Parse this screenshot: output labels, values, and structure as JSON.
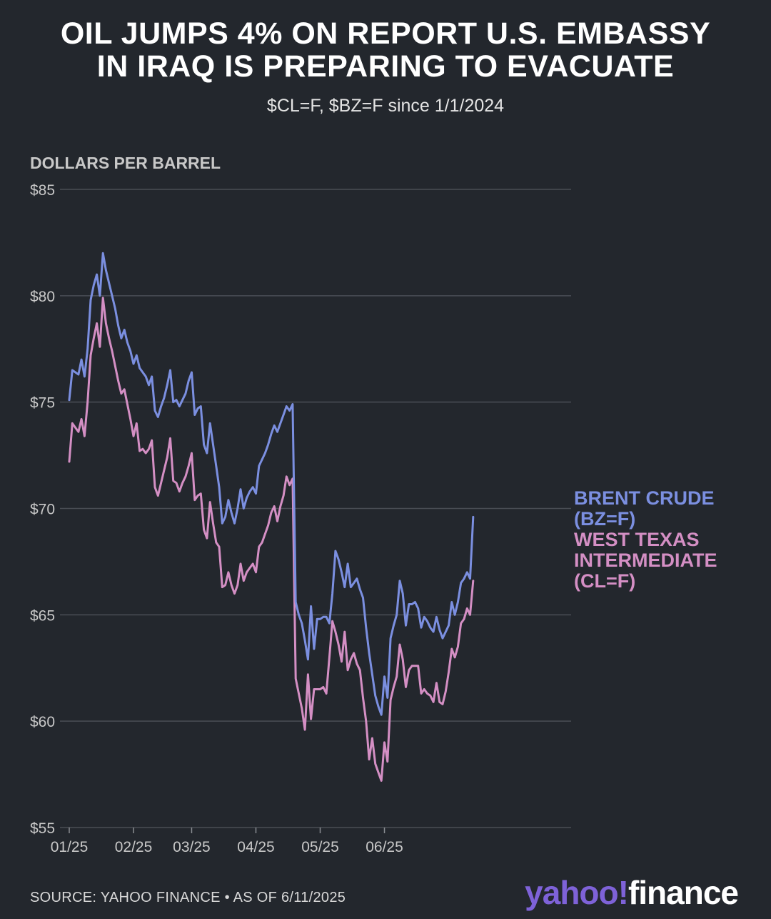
{
  "header": {
    "title_line1": "OIL JUMPS 4% ON REPORT U.S. EMBASSY",
    "title_line2": "IN IRAQ IS PREPARING TO EVACUATE",
    "subtitle": "$CL=F, $BZ=F since 1/1/2024"
  },
  "footer": {
    "source": "SOURCE: YAHOO FINANCE • AS OF 6/11/2025",
    "logo_part1": "yahoo!",
    "logo_part2": "finance"
  },
  "chart_data": {
    "type": "line",
    "ylabel": "DOLLARS PER BARREL",
    "ylim": [
      55,
      85
    ],
    "yticks": [
      55,
      60,
      65,
      70,
      75,
      80,
      85
    ],
    "ytick_labels": [
      "$55",
      "$60",
      "$65",
      "$70",
      "$75",
      "$80",
      "$85"
    ],
    "xlim": [
      0,
      164
    ],
    "xticks": [
      0,
      21,
      40,
      61,
      82,
      103
    ],
    "xtick_labels": [
      "01/25",
      "02/25",
      "03/25",
      "04/25",
      "05/25",
      "06/25"
    ],
    "grid": true,
    "colors": {
      "brent": "#7b8fe0",
      "wti": "#d48fc4",
      "grid": "#4a4e55",
      "text": "#c8c8c8"
    },
    "series": [
      {
        "name": "BRENT CRUDE (BZ=F)",
        "label_lines": [
          "BRENT CRUDE",
          "(BZ=F)"
        ],
        "color": "#7b8fe0",
        "points": [
          [
            0,
            75.1
          ],
          [
            1,
            76.5
          ],
          [
            2,
            76.4
          ],
          [
            3,
            76.3
          ],
          [
            4,
            77.0
          ],
          [
            5,
            76.2
          ],
          [
            6,
            77.5
          ],
          [
            7,
            79.8
          ],
          [
            8,
            80.5
          ],
          [
            9,
            81.0
          ],
          [
            10,
            80.0
          ],
          [
            11,
            82.0
          ],
          [
            12,
            81.2
          ],
          [
            13,
            80.6
          ],
          [
            14,
            80.0
          ],
          [
            15,
            79.4
          ],
          [
            16,
            78.6
          ],
          [
            17,
            78.0
          ],
          [
            18,
            78.4
          ],
          [
            19,
            77.8
          ],
          [
            20,
            77.4
          ],
          [
            21,
            76.8
          ],
          [
            22,
            77.2
          ],
          [
            23,
            76.6
          ],
          [
            24,
            76.4
          ],
          [
            25,
            76.2
          ],
          [
            26,
            75.8
          ],
          [
            27,
            76.2
          ],
          [
            28,
            74.6
          ],
          [
            29,
            74.3
          ],
          [
            30,
            74.8
          ],
          [
            31,
            75.2
          ],
          [
            32,
            75.8
          ],
          [
            33,
            76.5
          ],
          [
            34,
            75.0
          ],
          [
            35,
            75.1
          ],
          [
            36,
            74.8
          ],
          [
            37,
            75.1
          ],
          [
            38,
            75.4
          ],
          [
            39,
            76.0
          ],
          [
            40,
            76.4
          ],
          [
            41,
            74.4
          ],
          [
            42,
            74.7
          ],
          [
            43,
            74.8
          ],
          [
            44,
            73.0
          ],
          [
            45,
            72.6
          ],
          [
            46,
            74.0
          ],
          [
            47,
            73.0
          ],
          [
            48,
            72.0
          ],
          [
            49,
            71.0
          ],
          [
            50,
            69.3
          ],
          [
            51,
            69.6
          ],
          [
            52,
            70.4
          ],
          [
            53,
            69.8
          ],
          [
            54,
            69.3
          ],
          [
            55,
            70.0
          ],
          [
            56,
            70.9
          ],
          [
            57,
            70.0
          ],
          [
            58,
            70.5
          ],
          [
            59,
            70.8
          ],
          [
            60,
            71.0
          ],
          [
            61,
            70.7
          ],
          [
            62,
            72.0
          ],
          [
            63,
            72.3
          ],
          [
            64,
            72.6
          ],
          [
            65,
            73.0
          ],
          [
            66,
            73.5
          ],
          [
            67,
            73.9
          ],
          [
            68,
            73.6
          ],
          [
            69,
            74.0
          ],
          [
            70,
            74.4
          ],
          [
            71,
            74.8
          ],
          [
            72,
            74.6
          ],
          [
            73,
            74.9
          ],
          [
            74,
            65.6
          ],
          [
            75,
            65.0
          ],
          [
            76,
            64.6
          ],
          [
            77,
            63.8
          ],
          [
            78,
            62.9
          ],
          [
            79,
            65.4
          ],
          [
            80,
            63.4
          ],
          [
            81,
            64.8
          ],
          [
            82,
            64.8
          ],
          [
            83,
            64.9
          ],
          [
            84,
            64.9
          ],
          [
            85,
            64.6
          ],
          [
            86,
            66.0
          ],
          [
            87,
            68.0
          ],
          [
            88,
            67.6
          ],
          [
            89,
            67.0
          ],
          [
            90,
            66.3
          ],
          [
            91,
            67.4
          ],
          [
            92,
            66.3
          ],
          [
            93,
            66.5
          ],
          [
            94,
            66.7
          ],
          [
            95,
            66.2
          ],
          [
            96,
            65.8
          ],
          [
            97,
            64.4
          ],
          [
            98,
            63.2
          ],
          [
            99,
            62.2
          ],
          [
            100,
            61.2
          ],
          [
            101,
            60.7
          ],
          [
            102,
            60.3
          ],
          [
            103,
            62.1
          ],
          [
            104,
            61.1
          ],
          [
            105,
            63.9
          ],
          [
            106,
            64.5
          ],
          [
            107,
            65.0
          ],
          [
            108,
            66.6
          ],
          [
            109,
            66.0
          ],
          [
            110,
            64.5
          ],
          [
            111,
            65.5
          ],
          [
            112,
            65.5
          ],
          [
            113,
            65.6
          ],
          [
            114,
            65.3
          ],
          [
            115,
            64.4
          ],
          [
            116,
            64.9
          ],
          [
            117,
            64.7
          ],
          [
            118,
            64.4
          ],
          [
            119,
            64.2
          ],
          [
            120,
            64.9
          ],
          [
            121,
            64.3
          ],
          [
            122,
            63.9
          ],
          [
            123,
            64.2
          ],
          [
            124,
            64.5
          ],
          [
            125,
            65.6
          ],
          [
            126,
            65.0
          ],
          [
            127,
            65.6
          ],
          [
            128,
            66.5
          ],
          [
            129,
            66.7
          ],
          [
            130,
            67.0
          ],
          [
            131,
            66.7
          ],
          [
            132,
            69.6
          ]
        ]
      },
      {
        "name": "WEST TEXAS INTERMEDIATE (CL=F)",
        "label_lines": [
          "WEST TEXAS",
          "INTERMEDIATE",
          "(CL=F)"
        ],
        "color": "#d48fc4",
        "points": [
          [
            0,
            72.2
          ],
          [
            1,
            74.0
          ],
          [
            2,
            73.8
          ],
          [
            3,
            73.6
          ],
          [
            4,
            74.2
          ],
          [
            5,
            73.4
          ],
          [
            6,
            75.0
          ],
          [
            7,
            77.2
          ],
          [
            8,
            78.0
          ],
          [
            9,
            78.7
          ],
          [
            10,
            77.6
          ],
          [
            11,
            79.9
          ],
          [
            12,
            78.7
          ],
          [
            13,
            78.0
          ],
          [
            14,
            77.4
          ],
          [
            15,
            76.7
          ],
          [
            16,
            76.0
          ],
          [
            17,
            75.4
          ],
          [
            18,
            75.6
          ],
          [
            19,
            74.9
          ],
          [
            20,
            74.2
          ],
          [
            21,
            73.4
          ],
          [
            22,
            74.0
          ],
          [
            23,
            72.7
          ],
          [
            24,
            72.8
          ],
          [
            25,
            72.6
          ],
          [
            26,
            72.8
          ],
          [
            27,
            73.2
          ],
          [
            28,
            71.0
          ],
          [
            29,
            70.6
          ],
          [
            30,
            71.2
          ],
          [
            31,
            71.8
          ],
          [
            32,
            72.4
          ],
          [
            33,
            73.3
          ],
          [
            34,
            71.3
          ],
          [
            35,
            71.2
          ],
          [
            36,
            70.8
          ],
          [
            37,
            71.2
          ],
          [
            38,
            71.5
          ],
          [
            39,
            72.0
          ],
          [
            40,
            72.6
          ],
          [
            41,
            70.4
          ],
          [
            42,
            70.6
          ],
          [
            43,
            70.7
          ],
          [
            44,
            69.0
          ],
          [
            45,
            68.6
          ],
          [
            46,
            70.3
          ],
          [
            47,
            69.3
          ],
          [
            48,
            68.4
          ],
          [
            49,
            68.2
          ],
          [
            50,
            66.3
          ],
          [
            51,
            66.4
          ],
          [
            52,
            67.0
          ],
          [
            53,
            66.4
          ],
          [
            54,
            66.0
          ],
          [
            55,
            66.4
          ],
          [
            56,
            67.4
          ],
          [
            57,
            66.6
          ],
          [
            58,
            67.0
          ],
          [
            59,
            67.2
          ],
          [
            60,
            67.4
          ],
          [
            61,
            67.0
          ],
          [
            62,
            68.2
          ],
          [
            63,
            68.4
          ],
          [
            64,
            68.8
          ],
          [
            65,
            69.2
          ],
          [
            66,
            69.8
          ],
          [
            67,
            70.1
          ],
          [
            68,
            69.4
          ],
          [
            69,
            70.1
          ],
          [
            70,
            70.6
          ],
          [
            71,
            71.5
          ],
          [
            72,
            71.1
          ],
          [
            73,
            71.4
          ],
          [
            74,
            62.0
          ],
          [
            75,
            61.3
          ],
          [
            76,
            60.6
          ],
          [
            77,
            59.6
          ],
          [
            78,
            62.2
          ],
          [
            79,
            60.1
          ],
          [
            80,
            61.5
          ],
          [
            81,
            61.5
          ],
          [
            82,
            61.5
          ],
          [
            83,
            61.6
          ],
          [
            84,
            61.3
          ],
          [
            85,
            63.0
          ],
          [
            86,
            64.7
          ],
          [
            87,
            64.2
          ],
          [
            88,
            63.6
          ],
          [
            89,
            62.8
          ],
          [
            90,
            64.2
          ],
          [
            91,
            62.4
          ],
          [
            92,
            62.9
          ],
          [
            93,
            63.2
          ],
          [
            94,
            62.7
          ],
          [
            95,
            62.4
          ],
          [
            96,
            61.1
          ],
          [
            97,
            60.0
          ],
          [
            98,
            58.2
          ],
          [
            99,
            59.2
          ],
          [
            100,
            58.0
          ],
          [
            101,
            57.6
          ],
          [
            102,
            57.2
          ],
          [
            103,
            59.0
          ],
          [
            104,
            58.1
          ],
          [
            105,
            61.0
          ],
          [
            106,
            61.6
          ],
          [
            107,
            62.1
          ],
          [
            108,
            63.6
          ],
          [
            109,
            62.9
          ],
          [
            110,
            61.6
          ],
          [
            111,
            62.4
          ],
          [
            112,
            62.6
          ],
          [
            113,
            62.6
          ],
          [
            114,
            62.6
          ],
          [
            115,
            61.3
          ],
          [
            116,
            61.5
          ],
          [
            117,
            61.3
          ],
          [
            118,
            61.2
          ],
          [
            119,
            60.9
          ],
          [
            120,
            61.8
          ],
          [
            121,
            60.9
          ],
          [
            122,
            60.8
          ],
          [
            123,
            61.4
          ],
          [
            124,
            62.3
          ],
          [
            125,
            63.4
          ],
          [
            126,
            63.0
          ],
          [
            127,
            63.5
          ],
          [
            128,
            64.6
          ],
          [
            129,
            64.8
          ],
          [
            130,
            65.3
          ],
          [
            131,
            65.0
          ],
          [
            132,
            66.6
          ]
        ]
      }
    ]
  }
}
